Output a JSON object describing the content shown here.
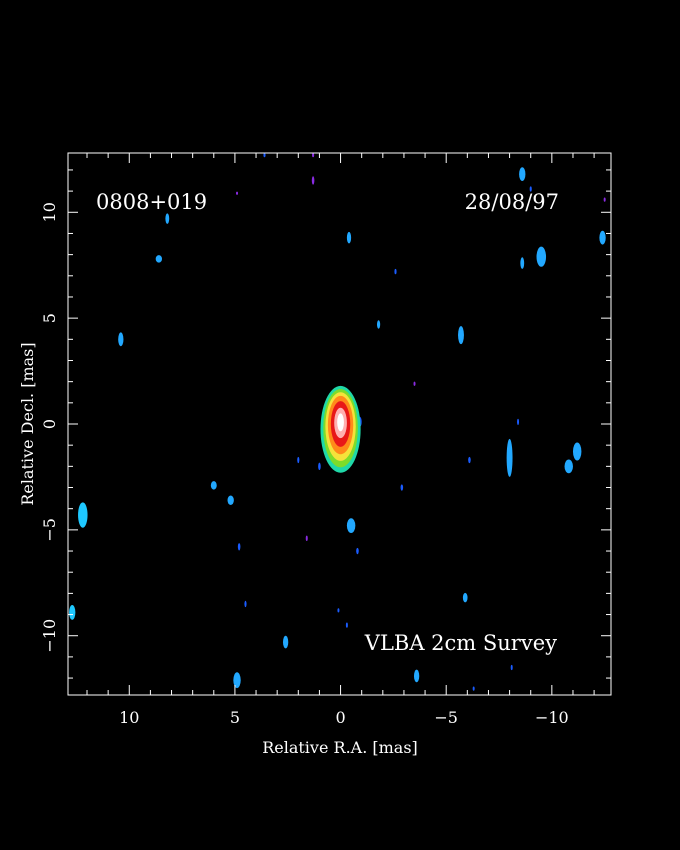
{
  "chart_data": {
    "type": "heatmap",
    "title": "",
    "source_label": "0808+019",
    "date_label": "28/08/97",
    "survey_label": "VLBA 2cm Survey",
    "xlabel": "Relative R.A. [mas]",
    "ylabel": "Relative Decl. [mas]",
    "xlim": [
      12.9,
      -12.8
    ],
    "ylim": [
      -12.8,
      12.8
    ],
    "x_reversed": true,
    "x_ticks": [
      {
        "value": 10,
        "label": "10"
      },
      {
        "value": 5,
        "label": "5"
      },
      {
        "value": 0,
        "label": "0"
      },
      {
        "value": -5,
        "label": "−5"
      },
      {
        "value": -10,
        "label": "−10"
      }
    ],
    "y_ticks": [
      {
        "value": 10,
        "label": "10"
      },
      {
        "value": 5,
        "label": "5"
      },
      {
        "value": 0,
        "label": "0"
      },
      {
        "value": -5,
        "label": "−5"
      },
      {
        "value": -10,
        "label": "−10"
      }
    ],
    "grid": false,
    "background": "#000000",
    "core": {
      "x": 0.0,
      "y": 0.0,
      "levels": [
        {
          "color": "#1fd8a8",
          "rx": 0.95,
          "ry": 2.05,
          "cy": -0.25
        },
        {
          "color": "#7ddc2a",
          "rx": 0.82,
          "ry": 1.85,
          "cy": -0.2
        },
        {
          "color": "#f5e23a",
          "rx": 0.72,
          "ry": 1.62,
          "cy": -0.12
        },
        {
          "color": "#ff8a1a",
          "rx": 0.6,
          "ry": 1.38,
          "cy": -0.05
        },
        {
          "color": "#e81818",
          "rx": 0.46,
          "ry": 1.08,
          "cy": 0.0
        },
        {
          "color": "#ffb0b0",
          "rx": 0.3,
          "ry": 0.72,
          "cy": 0.05
        },
        {
          "color": "#ffffff",
          "rx": 0.16,
          "ry": 0.42,
          "cy": 0.08
        }
      ]
    },
    "noise_blobs": [
      {
        "x": 12.2,
        "y": -4.3,
        "w": 0.45,
        "h": 1.2,
        "level": 2
      },
      {
        "x": 12.7,
        "y": -8.9,
        "w": 0.3,
        "h": 0.7,
        "level": 2
      },
      {
        "x": 10.4,
        "y": 4.0,
        "w": 0.25,
        "h": 0.65,
        "level": 1
      },
      {
        "x": 8.6,
        "y": 7.8,
        "w": 0.3,
        "h": 0.35,
        "level": 1
      },
      {
        "x": 8.2,
        "y": 9.7,
        "w": 0.18,
        "h": 0.5,
        "level": 1
      },
      {
        "x": 5.2,
        "y": -3.6,
        "w": 0.3,
        "h": 0.45,
        "level": 1
      },
      {
        "x": 6.0,
        "y": -2.9,
        "w": 0.28,
        "h": 0.4,
        "level": 1
      },
      {
        "x": 4.8,
        "y": -5.8,
        "w": 0.12,
        "h": 0.35,
        "level": 0
      },
      {
        "x": 4.5,
        "y": -8.5,
        "w": 0.1,
        "h": 0.3,
        "level": 0
      },
      {
        "x": 4.9,
        "y": -12.1,
        "w": 0.35,
        "h": 0.75,
        "level": 1
      },
      {
        "x": 2.6,
        "y": -10.3,
        "w": 0.25,
        "h": 0.6,
        "level": 1
      },
      {
        "x": 2.0,
        "y": -1.7,
        "w": 0.1,
        "h": 0.3,
        "level": 0
      },
      {
        "x": 1.0,
        "y": -2.0,
        "w": 0.12,
        "h": 0.35,
        "level": 0
      },
      {
        "x": 1.6,
        "y": -5.4,
        "w": 0.08,
        "h": 0.25,
        "level": 3
      },
      {
        "x": 0.1,
        "y": -8.8,
        "w": 0.08,
        "h": 0.2,
        "level": 0
      },
      {
        "x": -0.3,
        "y": -9.5,
        "w": 0.08,
        "h": 0.25,
        "level": 0
      },
      {
        "x": -0.5,
        "y": -4.8,
        "w": 0.4,
        "h": 0.7,
        "level": 1
      },
      {
        "x": -0.8,
        "y": -6.0,
        "w": 0.12,
        "h": 0.3,
        "level": 0
      },
      {
        "x": -0.9,
        "y": 0.1,
        "w": 0.2,
        "h": 0.5,
        "level": 0
      },
      {
        "x": -0.4,
        "y": 8.8,
        "w": 0.2,
        "h": 0.55,
        "level": 1
      },
      {
        "x": 1.3,
        "y": 11.5,
        "w": 0.12,
        "h": 0.4,
        "level": 3
      },
      {
        "x": 1.3,
        "y": 12.7,
        "w": 0.1,
        "h": 0.2,
        "level": 3
      },
      {
        "x": 3.6,
        "y": 12.7,
        "w": 0.1,
        "h": 0.2,
        "level": 0
      },
      {
        "x": 4.9,
        "y": 10.9,
        "w": 0.06,
        "h": 0.15,
        "level": 3
      },
      {
        "x": -1.8,
        "y": 4.7,
        "w": 0.15,
        "h": 0.4,
        "level": 1
      },
      {
        "x": -2.6,
        "y": 7.2,
        "w": 0.1,
        "h": 0.25,
        "level": 0
      },
      {
        "x": -2.9,
        "y": -3.0,
        "w": 0.12,
        "h": 0.3,
        "level": 0
      },
      {
        "x": -3.5,
        "y": 1.9,
        "w": 0.08,
        "h": 0.2,
        "level": 3
      },
      {
        "x": -3.6,
        "y": -11.9,
        "w": 0.25,
        "h": 0.6,
        "level": 1
      },
      {
        "x": -5.7,
        "y": 4.2,
        "w": 0.28,
        "h": 0.85,
        "level": 1
      },
      {
        "x": -5.9,
        "y": -8.2,
        "w": 0.22,
        "h": 0.45,
        "level": 1
      },
      {
        "x": -6.1,
        "y": -1.7,
        "w": 0.12,
        "h": 0.3,
        "level": 0
      },
      {
        "x": -6.3,
        "y": -12.5,
        "w": 0.08,
        "h": 0.2,
        "level": 0
      },
      {
        "x": -8.0,
        "y": -1.6,
        "w": 0.28,
        "h": 1.8,
        "level": 1
      },
      {
        "x": -8.4,
        "y": 0.1,
        "w": 0.08,
        "h": 0.3,
        "level": 0
      },
      {
        "x": -8.6,
        "y": 7.6,
        "w": 0.18,
        "h": 0.55,
        "level": 1
      },
      {
        "x": -8.6,
        "y": 11.8,
        "w": 0.3,
        "h": 0.65,
        "level": 1
      },
      {
        "x": -8.1,
        "y": -11.5,
        "w": 0.08,
        "h": 0.25,
        "level": 0
      },
      {
        "x": -9.0,
        "y": 11.1,
        "w": 0.1,
        "h": 0.25,
        "level": 0
      },
      {
        "x": -9.5,
        "y": 7.9,
        "w": 0.45,
        "h": 0.95,
        "level": 1
      },
      {
        "x": -10.8,
        "y": -2.0,
        "w": 0.4,
        "h": 0.65,
        "level": 1
      },
      {
        "x": -11.2,
        "y": -1.3,
        "w": 0.4,
        "h": 0.85,
        "level": 1
      },
      {
        "x": -12.4,
        "y": 8.8,
        "w": 0.3,
        "h": 0.65,
        "level": 1
      },
      {
        "x": -12.5,
        "y": 10.6,
        "w": 0.08,
        "h": 0.2,
        "level": 3
      }
    ],
    "noise_colors": [
      "#1a5cff",
      "#22a8ff",
      "#1ec8ff",
      "#8a2be2"
    ]
  }
}
